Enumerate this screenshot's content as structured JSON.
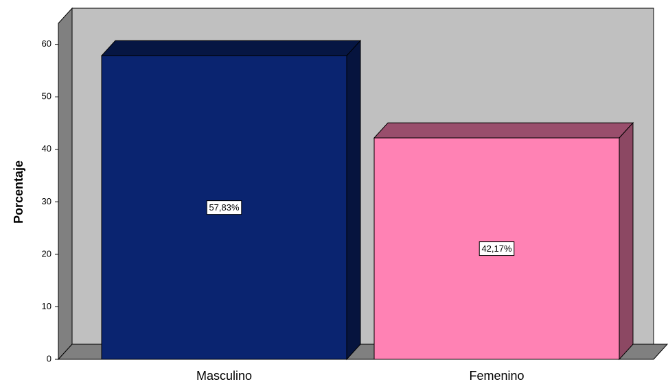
{
  "chart_data": {
    "type": "bar3d",
    "ylabel": "Porcentaje",
    "categories": [
      "Masculino",
      "Femenino"
    ],
    "values": [
      57.83,
      42.17
    ],
    "value_labels": [
      "57,83%",
      "42,17%"
    ],
    "colors": [
      "#0a2470",
      "#ff82b4"
    ],
    "ylim": [
      0,
      64
    ],
    "yticks": [
      0,
      10,
      20,
      30,
      40,
      50,
      60
    ]
  }
}
